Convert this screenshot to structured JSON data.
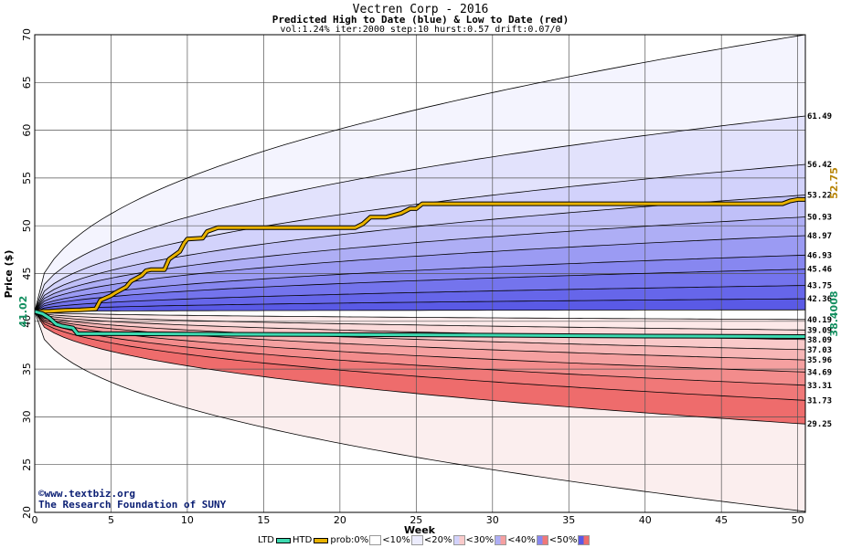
{
  "chart_data": {
    "type": "area",
    "title": "Vectren Corp - 2016",
    "subtitle": "Predicted High to Date (blue) &  Low to Date (red)",
    "params": "vol:1.24% iter:2000 step:10 hurst:0.57 drift:0.07/0",
    "xlabel": "Week",
    "ylabel": "Price ($)",
    "xlim": [
      0,
      50.5
    ],
    "ylim": [
      20,
      70
    ],
    "xticks": [
      0,
      5,
      10,
      15,
      20,
      25,
      30,
      35,
      40,
      45,
      50
    ],
    "yticks": [
      20,
      25,
      30,
      35,
      40,
      45,
      50,
      55,
      60,
      65,
      70
    ],
    "start_price": 41.02,
    "start_price_label": "41.02",
    "grid": true,
    "upper_percentile_end_values": [
      70.0,
      61.49,
      56.42,
      53.22,
      50.93,
      48.97,
      46.93,
      45.46,
      43.75,
      42.36,
      41.2
    ],
    "upper_labels": [
      "61.49",
      "56.42",
      "53.22",
      "50.93",
      "48.97",
      "46.93",
      "45.46",
      "43.75",
      "42.36"
    ],
    "lower_percentile_end_values": [
      40.19,
      39.09,
      38.09,
      37.03,
      35.96,
      34.69,
      33.31,
      31.73,
      29.25,
      20.1
    ],
    "lower_labels": [
      "40.19",
      "39.09",
      "38.09",
      "37.03",
      "35.96",
      "34.69",
      "33.31",
      "31.73",
      "29.25"
    ],
    "htd_series": {
      "name": "HTD",
      "end_label": "52.75",
      "color": "#e8b200",
      "x": [
        0,
        1,
        1.5,
        2,
        3,
        4,
        4.3,
        5,
        5.3,
        6,
        6.3,
        7,
        7.3,
        7.6,
        8.5,
        8.8,
        9.5,
        9.8,
        10,
        11,
        11.3,
        12,
        21,
        21.5,
        22,
        23,
        24,
        24.6,
        25,
        25.4,
        26,
        42,
        43,
        44,
        49,
        49.5,
        50,
        50.5
      ],
      "y": [
        41.02,
        41.05,
        41.1,
        41.15,
        41.2,
        41.3,
        42.2,
        42.7,
        43.0,
        43.6,
        44.2,
        44.8,
        45.3,
        45.4,
        45.4,
        46.5,
        47.3,
        48.2,
        48.6,
        48.7,
        49.4,
        49.8,
        49.8,
        50.2,
        50.9,
        50.9,
        51.3,
        51.8,
        51.8,
        52.3,
        52.3,
        52.3,
        52.3,
        52.3,
        52.3,
        52.6,
        52.75,
        52.75
      ]
    },
    "ltd_series": {
      "name": "LTD",
      "end_label": "38.4008",
      "color": "#3dd9b0",
      "x": [
        0,
        0.5,
        1,
        1.4,
        1.8,
        2.5,
        2.8,
        5,
        12,
        20,
        30,
        40,
        50.5
      ],
      "y": [
        41.02,
        40.8,
        40.3,
        39.7,
        39.5,
        39.3,
        38.7,
        38.7,
        38.65,
        38.6,
        38.55,
        38.45,
        38.4
      ]
    },
    "legend": {
      "ltd": "LTD",
      "htd": "HTD",
      "prob": "prob:",
      "bins": [
        "0%",
        "<10%",
        "<20%",
        "<30%",
        "<40%",
        "<50%"
      ],
      "placement": "bottom"
    },
    "colors": {
      "band_blue": [
        "#f4f4fe",
        "#e2e2fc",
        "#d2d2fb",
        "#c0c0f8",
        "#aeaef5",
        "#9b9bf3",
        "#8787f0",
        "#7474ed",
        "#6666ea",
        "#5a5ae6"
      ],
      "band_red": [
        "#fde9e9",
        "#fbdada",
        "#f9caca",
        "#f7b6b6",
        "#f5a0a0",
        "#f38c8c",
        "#f07878",
        "#ee6c6c",
        "#fbeeee"
      ],
      "grid": "#555555",
      "axis_label": "#000000",
      "end_label_htd": "#b8860b",
      "end_label_ltd": "#138f60"
    }
  },
  "watermark": {
    "line1": "©www.textbiz.org",
    "line2": "The Research Foundation of SUNY"
  }
}
